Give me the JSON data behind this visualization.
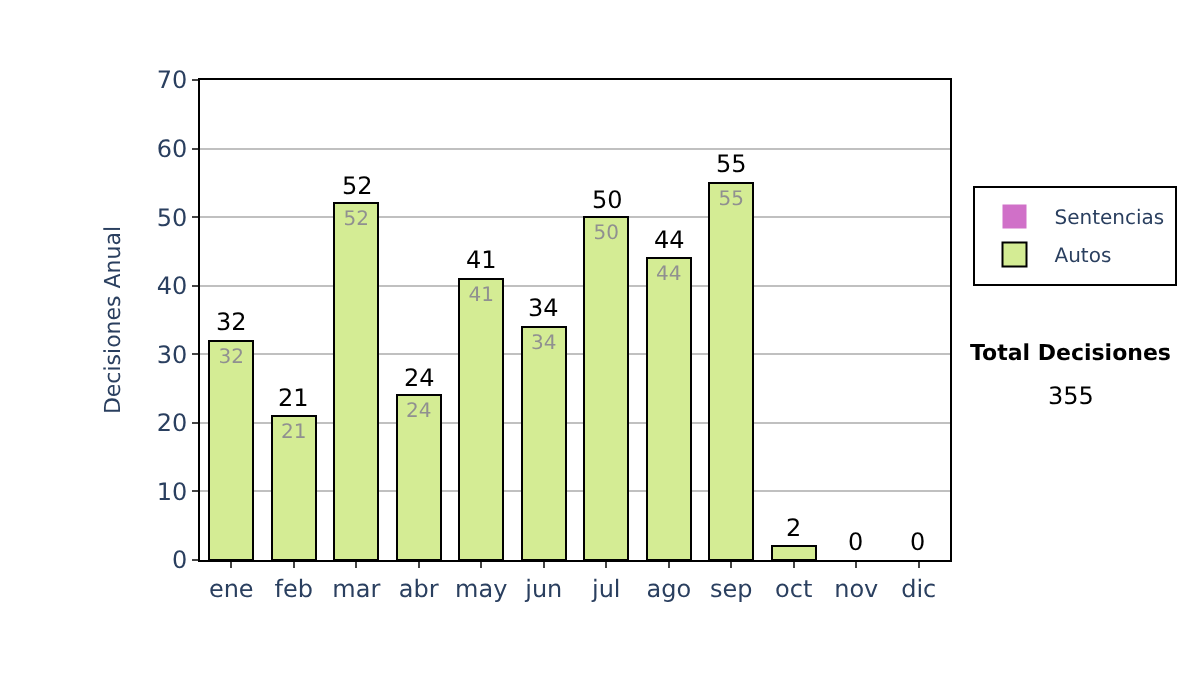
{
  "chart_data": {
    "type": "bar",
    "stacked": true,
    "ylabel": "Decisiones Anual",
    "categories": [
      "ene",
      "feb",
      "mar",
      "abr",
      "may",
      "jun",
      "jul",
      "ago",
      "sep",
      "oct",
      "nov",
      "dic"
    ],
    "series": [
      {
        "name": "Sentencias",
        "color": "#d070c8",
        "values": [
          0,
          0,
          0,
          0,
          0,
          0,
          0,
          0,
          0,
          0,
          0,
          0
        ]
      },
      {
        "name": "Autos",
        "color": "#d4ec94",
        "values": [
          32,
          21,
          52,
          24,
          41,
          34,
          50,
          44,
          55,
          2,
          0,
          0
        ],
        "value_labels": [
          "32",
          "21",
          "52",
          "24",
          "41",
          "34",
          "50",
          "44",
          "55",
          null,
          null,
          null
        ]
      }
    ],
    "totals": [
      "32",
      "21",
      "52",
      "24",
      "41",
      "34",
      "50",
      "44",
      "55",
      "2",
      "0",
      "0"
    ],
    "ylim": [
      0,
      70
    ],
    "yticks": [
      0,
      10,
      20,
      30,
      40,
      50,
      60,
      70
    ],
    "grid": "y",
    "legend": "right",
    "annotations": [
      "Total Decisiones",
      "355"
    ]
  }
}
